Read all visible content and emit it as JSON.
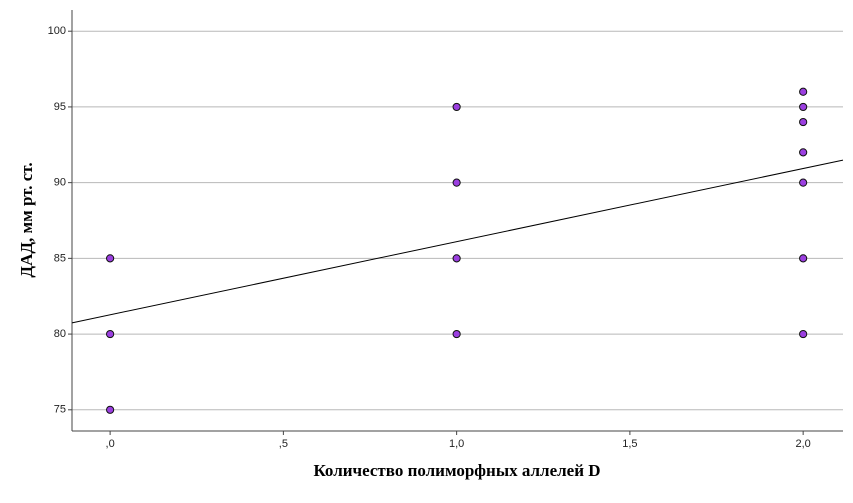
{
  "chart_data": {
    "type": "scatter",
    "x_label": "Количество полиморфных аллелей D",
    "y_label": "ДАД, мм рт. ст.",
    "x": [
      0,
      0,
      0,
      1,
      1,
      1,
      1,
      2,
      2,
      2,
      2,
      2,
      2,
      2
    ],
    "values": [
      85,
      80,
      75,
      95,
      90,
      85,
      80,
      96,
      95,
      94,
      92,
      90,
      85,
      80
    ],
    "color": "#9b3fe0",
    "fit_line": {
      "x": [
        -0.11,
        2.115
      ],
      "values": [
        80.74,
        91.49
      ],
      "color": "#000000"
    },
    "xlim": [
      -0.11,
      2.115
    ],
    "ylim": [
      73.6,
      101.4
    ],
    "xticks": [
      {
        "value": 0,
        "label": ",0"
      },
      {
        "value": 0.5,
        "label": ",5"
      },
      {
        "value": 1,
        "label": "1,0"
      },
      {
        "value": 1.5,
        "label": "1,5"
      },
      {
        "value": 2,
        "label": "2,0"
      }
    ],
    "yticks": [
      75,
      80,
      85,
      90,
      95,
      100
    ],
    "grid": true
  }
}
